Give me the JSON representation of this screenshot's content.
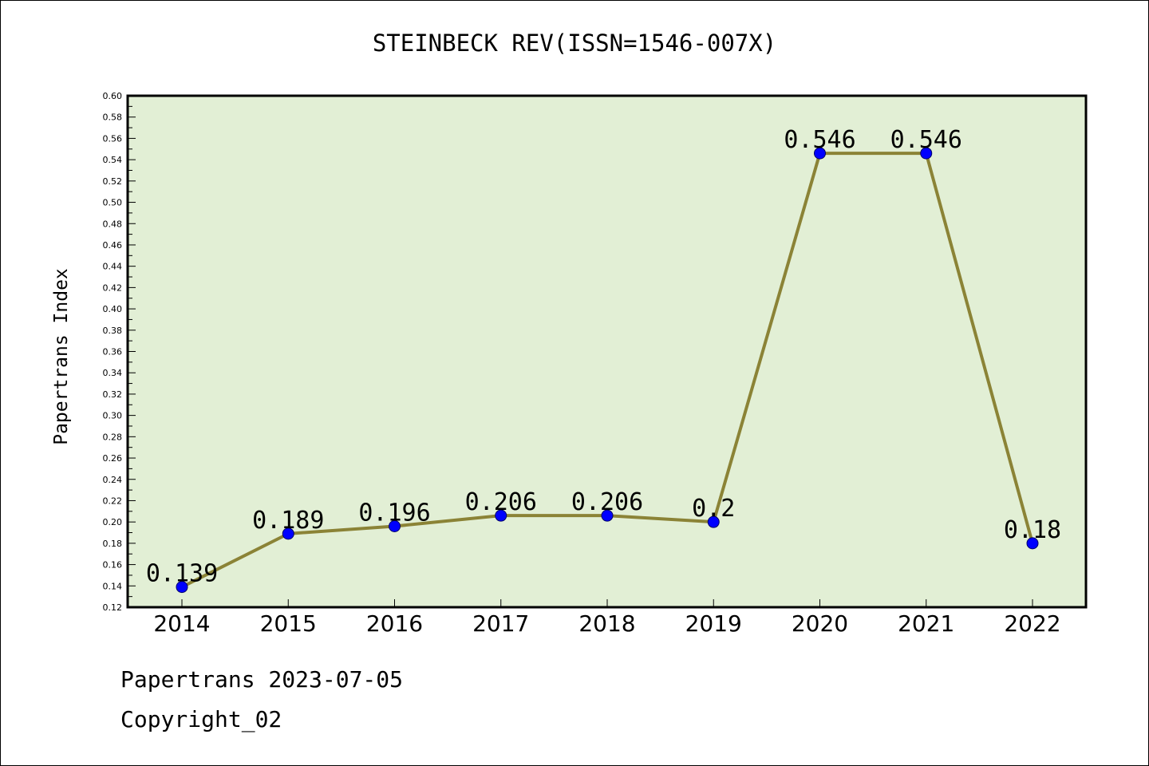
{
  "footer": {
    "date_line": "Papertrans 2023-07-05",
    "copyright_line": "Copyright_02"
  },
  "colors": {
    "plot_background": "#e2efd5",
    "line": "#8b8336",
    "marker": "#0000ff",
    "axis": "#000000"
  },
  "chart_data": {
    "type": "line",
    "title": "STEINBECK REV(ISSN=1546-007X)",
    "xlabel": "",
    "ylabel": "Papertrans Index",
    "categories": [
      "2014",
      "2015",
      "2016",
      "2017",
      "2018",
      "2019",
      "2020",
      "2021",
      "2022"
    ],
    "series": [
      {
        "values": [
          0.139,
          0.189,
          0.196,
          0.206,
          0.206,
          0.2,
          0.546,
          0.546,
          0.18
        ],
        "data_labels": [
          "0.139",
          "0.189",
          "0.196",
          "0.206",
          "0.206",
          "0.2",
          "0.546",
          "0.546",
          "0.18"
        ]
      }
    ],
    "ylim": [
      0.12,
      0.6
    ],
    "ytick_step": 0.02,
    "ytick_labels": [
      "0.12",
      "0.14",
      "0.16",
      "0.18",
      "0.20",
      "0.22",
      "0.24",
      "0.26",
      "0.28",
      "0.30",
      "0.32",
      "0.34",
      "0.36",
      "0.38",
      "0.40",
      "0.42",
      "0.44",
      "0.46",
      "0.48",
      "0.50",
      "0.52",
      "0.54",
      "0.56",
      "0.58",
      "0.60"
    ],
    "grid": false,
    "legend": "none"
  }
}
